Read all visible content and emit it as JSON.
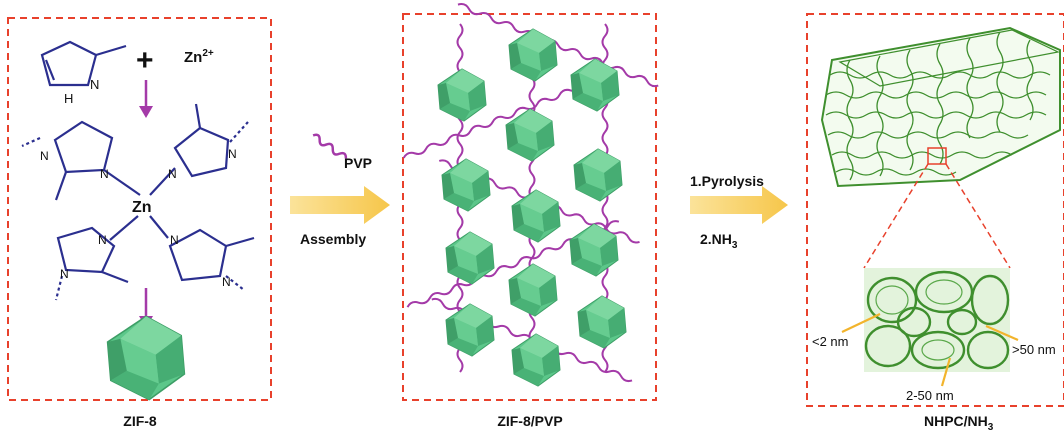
{
  "panels": {
    "zif8": {
      "caption": "ZIF-8",
      "zn_ion": "Zn",
      "zn_charge": "2+",
      "plus": "+",
      "ring_nh": "N",
      "ring_h": "H",
      "center": "Zn",
      "n_label": "N"
    },
    "assembly": {
      "caption": "ZIF-8/PVP"
    },
    "carbon": {
      "caption_main": "NHPC/NH",
      "caption_sub": "3",
      "pore_micro": "<2 nm",
      "pore_meso": "2-50 nm",
      "pore_macro": ">50 nm"
    }
  },
  "arrows": {
    "first": {
      "top": "PVP",
      "bottom": "Assembly"
    },
    "second": {
      "top": "1.Pyrolysis",
      "bottom_main": "2.NH",
      "bottom_sub": "3"
    }
  },
  "colors": {
    "frame": "#e8412c",
    "molecule": "#2b2f8f",
    "zinc": "#3bb56b",
    "crystal": "#5cc78a",
    "crystal_dark": "#3d9e66",
    "polymer": "#a43aa8",
    "arrow": "#f8d36a",
    "carbon": "#3f8f2e",
    "pore_arrow": "#f2b42c"
  }
}
